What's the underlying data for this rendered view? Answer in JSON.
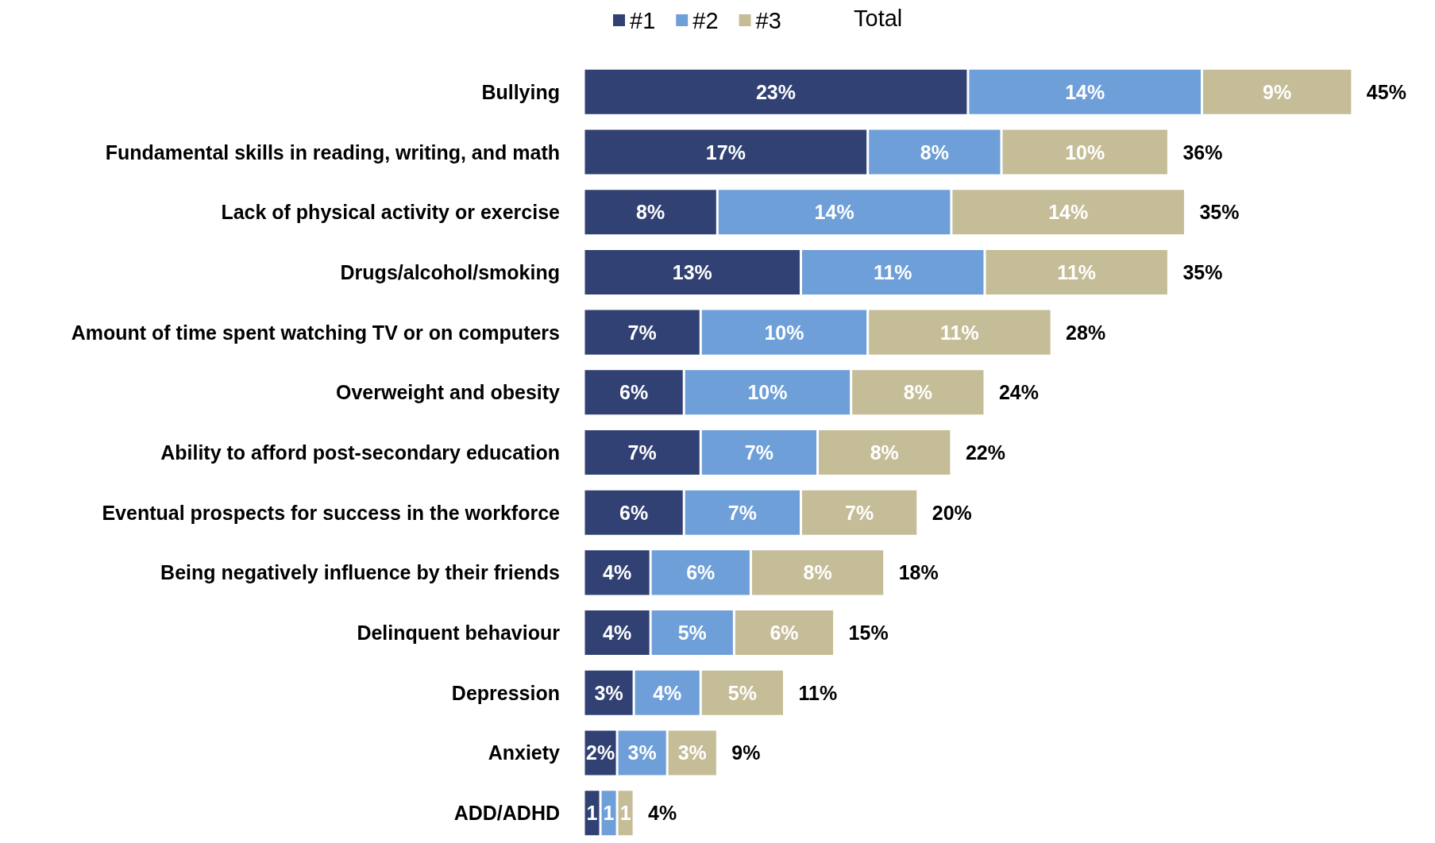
{
  "chart_data": {
    "type": "bar",
    "orientation": "horizontal",
    "stacked": true,
    "legend": "top",
    "legend_title": "Total",
    "data_labels": false,
    "categories": [
      "Bullying",
      "Fundamental skills in reading, writing, and math",
      "Lack of physical activity or exercise",
      "Drugs/alcohol/smoking",
      "Amount of time spent watching TV or on computers",
      "Overweight and obesity",
      "Ability to afford post-secondary education",
      "Eventual prospects for success in the workforce",
      "Being negatively influence by their friends",
      "Delinquent behaviour",
      "Depression",
      "Anxiety",
      "ADD/ADHD"
    ],
    "series": [
      {
        "name": "#1",
        "color": "#314173",
        "values": [
          23,
          17,
          8,
          13,
          7,
          6,
          7,
          6,
          4,
          4,
          3,
          2,
          1
        ],
        "value_labels": [
          "23%",
          "17%",
          "8%",
          "13%",
          "7%",
          "6%",
          "7%",
          "6%",
          "4%",
          "4%",
          "3%",
          "2%",
          "1"
        ]
      },
      {
        "name": "#2",
        "color": "#6f9fd8",
        "values": [
          14,
          8,
          14,
          11,
          10,
          10,
          7,
          7,
          6,
          5,
          4,
          3,
          1
        ],
        "value_labels": [
          "14%",
          "8%",
          "14%",
          "11%",
          "10%",
          "10%",
          "7%",
          "7%",
          "6%",
          "5%",
          "4%",
          "3%",
          "1"
        ]
      },
      {
        "name": "#3",
        "color": "#c5bd98",
        "values": [
          9,
          10,
          14,
          11,
          11,
          8,
          8,
          7,
          8,
          6,
          5,
          3,
          1
        ],
        "value_labels": [
          "9%",
          "10%",
          "14%",
          "11%",
          "11%",
          "8%",
          "8%",
          "7%",
          "8%",
          "6%",
          "5%",
          "3%",
          "1"
        ]
      }
    ],
    "totals": [
      "45%",
      "36%",
      "35%",
      "35%",
      "28%",
      "24%",
      "22%",
      "20%",
      "18%",
      "15%",
      "11%",
      "9%",
      "4%"
    ]
  }
}
